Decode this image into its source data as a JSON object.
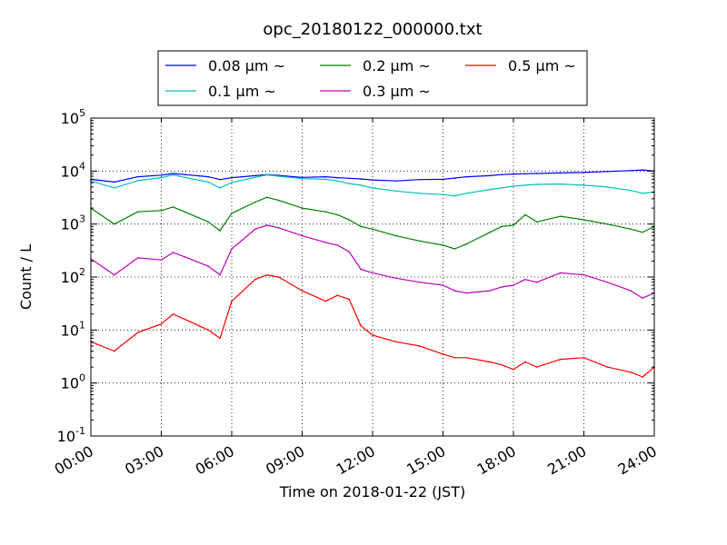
{
  "chart_data": {
    "type": "line",
    "title": "opc_20180122_000000.txt",
    "xlabel": "Time on 2018-01-22 (JST)",
    "ylabel": "Count / L",
    "yscale": "log",
    "ylim": [
      0.1,
      100000
    ],
    "xlim": [
      "00:00",
      "24:00"
    ],
    "grid": true,
    "legend_position": "top-center",
    "legend_columns": 3,
    "x_ticks": [
      "00:00",
      "03:00",
      "06:00",
      "09:00",
      "12:00",
      "15:00",
      "18:00",
      "21:00",
      "24:00"
    ],
    "y_ticks": [
      {
        "base": "10",
        "exp": "-1"
      },
      {
        "base": "10",
        "exp": "0"
      },
      {
        "base": "10",
        "exp": "1"
      },
      {
        "base": "10",
        "exp": "2"
      },
      {
        "base": "10",
        "exp": "3"
      },
      {
        "base": "10",
        "exp": "4"
      },
      {
        "base": "10",
        "exp": "5"
      }
    ],
    "x": [
      "00:00",
      "01:00",
      "02:00",
      "03:00",
      "03:30",
      "04:00",
      "05:00",
      "05:30",
      "06:00",
      "07:00",
      "07:30",
      "08:00",
      "09:00",
      "10:00",
      "10:30",
      "11:00",
      "11:30",
      "12:00",
      "13:00",
      "14:00",
      "15:00",
      "15:30",
      "16:00",
      "17:00",
      "17:30",
      "18:00",
      "18:30",
      "19:00",
      "20:00",
      "21:00",
      "22:00",
      "23:00",
      "23:30",
      "24:00"
    ],
    "series": [
      {
        "name": "0.08 μm ~",
        "color": "#0000ff",
        "values": [
          7000,
          6200,
          7800,
          8400,
          9000,
          8600,
          7800,
          6900,
          7500,
          8200,
          8600,
          8300,
          7600,
          7800,
          7500,
          7300,
          7100,
          6800,
          6500,
          6900,
          7000,
          7400,
          7800,
          8200,
          8600,
          8800,
          8900,
          9000,
          9200,
          9400,
          9800,
          10200,
          10500,
          10000
        ]
      },
      {
        "name": "0.1 μm ~",
        "color": "#00bfbf",
        "values": [
          6500,
          4800,
          6600,
          7500,
          8500,
          7600,
          6200,
          4800,
          6100,
          7600,
          8500,
          8000,
          7200,
          7000,
          6500,
          5800,
          5400,
          4800,
          4200,
          3800,
          3600,
          3400,
          3800,
          4500,
          4800,
          5200,
          5400,
          5600,
          5700,
          5400,
          5000,
          4300,
          3800,
          4000
        ]
      },
      {
        "name": "0.2 μm ~",
        "color": "#008000",
        "values": [
          2000,
          1000,
          1700,
          1800,
          2100,
          1700,
          1100,
          750,
          1600,
          2600,
          3200,
          2800,
          2000,
          1700,
          1500,
          1200,
          900,
          800,
          600,
          480,
          400,
          340,
          420,
          700,
          900,
          950,
          1500,
          1100,
          1400,
          1200,
          1000,
          800,
          700,
          900
        ]
      },
      {
        "name": "0.3 μm ~",
        "color": "#bf00bf",
        "values": [
          220,
          110,
          230,
          210,
          290,
          240,
          160,
          110,
          340,
          800,
          950,
          850,
          600,
          450,
          400,
          300,
          140,
          120,
          95,
          80,
          70,
          55,
          50,
          55,
          65,
          70,
          90,
          80,
          120,
          110,
          80,
          55,
          40,
          50
        ]
      },
      {
        "name": "0.5 μm ~",
        "color": "#ff0000",
        "values": [
          6,
          4,
          9,
          13,
          20,
          16,
          10,
          7,
          35,
          90,
          110,
          100,
          55,
          35,
          45,
          38,
          12,
          8,
          6,
          5,
          3.5,
          3,
          3,
          2.5,
          2.2,
          1.8,
          2.5,
          2,
          2.8,
          3,
          2,
          1.6,
          1.3,
          2
        ]
      }
    ]
  }
}
